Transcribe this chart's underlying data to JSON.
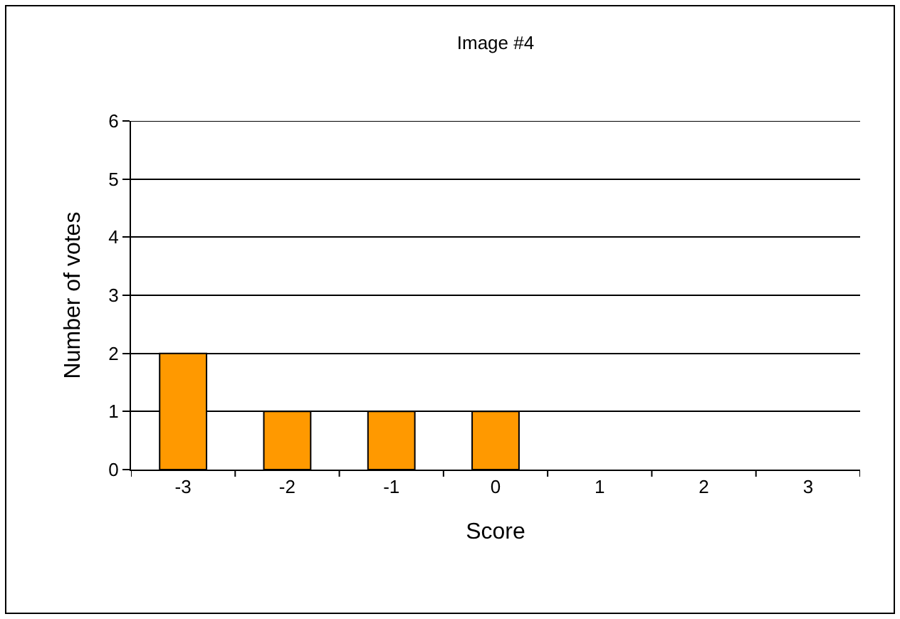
{
  "chart_data": {
    "type": "bar",
    "title": "Image #4",
    "xlabel": "Score",
    "ylabel": "Number of votes",
    "categories": [
      "-3",
      "-2",
      "-1",
      "0",
      "1",
      "2",
      "3"
    ],
    "values": [
      2,
      1,
      1,
      1,
      0,
      0,
      0
    ],
    "color": "#ff9900",
    "ylim": [
      0,
      6
    ],
    "yticks": [
      0,
      1,
      2,
      3,
      4,
      5,
      6
    ],
    "grid": "y"
  }
}
